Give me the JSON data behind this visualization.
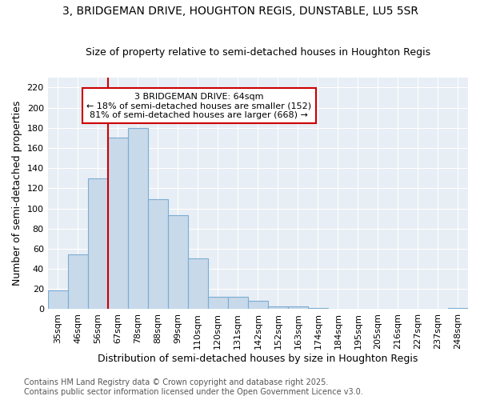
{
  "title": "3, BRIDGEMAN DRIVE, HOUGHTON REGIS, DUNSTABLE, LU5 5SR",
  "subtitle": "Size of property relative to semi-detached houses in Houghton Regis",
  "xlabel": "Distribution of semi-detached houses by size in Houghton Regis",
  "ylabel": "Number of semi-detached properties",
  "categories": [
    "35sqm",
    "46sqm",
    "56sqm",
    "67sqm",
    "78sqm",
    "88sqm",
    "99sqm",
    "110sqm",
    "120sqm",
    "131sqm",
    "142sqm",
    "152sqm",
    "163sqm",
    "174sqm",
    "184sqm",
    "195sqm",
    "205sqm",
    "216sqm",
    "227sqm",
    "237sqm",
    "248sqm"
  ],
  "values": [
    19,
    54,
    130,
    170,
    180,
    109,
    93,
    50,
    12,
    12,
    8,
    3,
    3,
    1,
    0,
    0,
    0,
    0,
    0,
    0,
    1
  ],
  "bar_color": "#c8d9ea",
  "bar_edge_color": "#7aadd4",
  "background_color": "#e8eef5",
  "plot_bg_color": "#e8eef5",
  "grid_color": "#ffffff",
  "vline_color": "#cc0000",
  "vline_x": 2.5,
  "annotation_text": "3 BRIDGEMAN DRIVE: 64sqm\n← 18% of semi-detached houses are smaller (152)\n81% of semi-detached houses are larger (668) →",
  "annotation_box_edge_color": "#cc0000",
  "ylim": [
    0,
    230
  ],
  "yticks": [
    0,
    20,
    40,
    60,
    80,
    100,
    120,
    140,
    160,
    180,
    200,
    220
  ],
  "footer_line1": "Contains HM Land Registry data © Crown copyright and database right 2025.",
  "footer_line2": "Contains public sector information licensed under the Open Government Licence v3.0.",
  "title_fontsize": 10,
  "subtitle_fontsize": 9,
  "axis_label_fontsize": 9,
  "tick_fontsize": 8,
  "annotation_fontsize": 8,
  "footer_fontsize": 7
}
